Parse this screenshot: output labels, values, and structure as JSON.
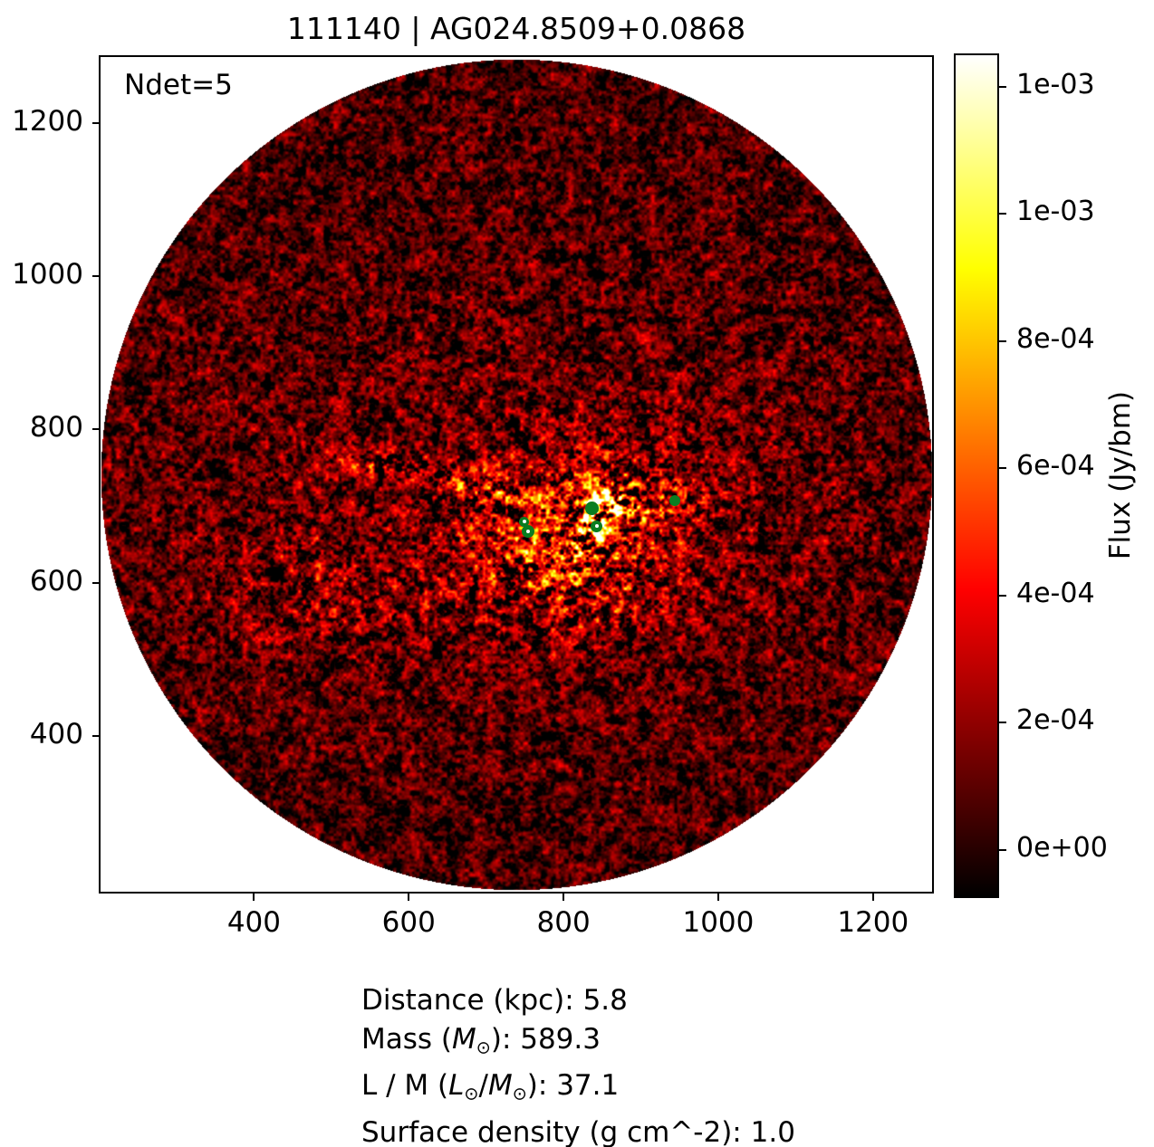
{
  "title": "111140 | AG024.8509+0.0868",
  "annotation": "Ndet=5",
  "axes": {
    "x_ticks": [
      400,
      600,
      800,
      1000,
      1200
    ],
    "y_ticks": [
      400,
      600,
      800,
      1000,
      1200
    ],
    "x_range": [
      200.5,
      1277.5
    ],
    "y_range": [
      196,
      1287
    ]
  },
  "colorbar": {
    "label": "Flux (Jy/bm)",
    "colormap": "hot",
    "vmin": -7.6e-05,
    "vmax": 0.0012525,
    "ticks": [
      {
        "label": "1e-03",
        "value": 0.0012
      },
      {
        "label": "1e-03",
        "value": 0.001
      },
      {
        "label": "8e-04",
        "value": 0.0008
      },
      {
        "label": "6e-04",
        "value": 0.0006
      },
      {
        "label": "4e-04",
        "value": 0.0004
      },
      {
        "label": "2e-04",
        "value": 0.0002
      },
      {
        "label": "0e+00",
        "value": 0.0
      }
    ]
  },
  "info": {
    "line1": "Distance (kpc): 5.8",
    "line2": {
      "pre": "Mass (",
      "m": "M",
      "sun": "⊙",
      "post": "): 589.3"
    },
    "line3": {
      "pre": "L / M (",
      "l": "L",
      "sun1": "⊙",
      "slash": "/",
      "m": "M",
      "sun2": "⊙",
      "post": "): 37.1"
    },
    "line4": "Surface density (g cm^-2): 1.0"
  },
  "chart_data": {
    "type": "heatmap",
    "title": "111140 | AG024.8509+0.0868",
    "annotation": "Ndet=5",
    "x_range": [
      200.5,
      1277.5
    ],
    "y_range": [
      196,
      1287
    ],
    "x_ticks": [
      400,
      600,
      800,
      1000,
      1200
    ],
    "y_ticks": [
      400,
      600,
      800,
      1000,
      1200
    ],
    "colorbar_label": "Flux (Jy/bm)",
    "colorbar_tick_labels": [
      "1e-03",
      "1e-03",
      "8e-04",
      "6e-04",
      "4e-04",
      "2e-04",
      "0e+00"
    ],
    "colorbar_tick_values": [
      0.0012,
      0.001,
      0.0008,
      0.0006,
      0.0004,
      0.0002,
      0.0
    ],
    "colormap": "hot",
    "field_shape": "circle",
    "field_center_xy": [
      739,
      741.5
    ],
    "field_radius": 537,
    "detections_count": 5,
    "detection_color": "#0a7d21",
    "detections": [
      {
        "x": 749,
        "y": 680,
        "r": 5.5,
        "hole": true
      },
      {
        "x": 754,
        "y": 667,
        "r": 7.0,
        "hole": true
      },
      {
        "x": 837,
        "y": 697,
        "r": 7.5,
        "hole": false
      },
      {
        "x": 843,
        "y": 674,
        "r": 6.5,
        "hole": true
      },
      {
        "x": 944,
        "y": 707,
        "r": 6.0,
        "hole": false
      }
    ],
    "bright_features": [
      {
        "x": 821,
        "y": 672,
        "a": 105,
        "b": 75,
        "pa": 15,
        "amp": 0.4
      },
      {
        "x": 800,
        "y": 628,
        "a": 70,
        "b": 45,
        "pa": -20,
        "amp": 0.18
      },
      {
        "x": 837,
        "y": 683,
        "a": 34,
        "b": 12,
        "pa": 70,
        "amp": 0.95
      },
      {
        "x": 879,
        "y": 705,
        "a": 14,
        "b": 12,
        "pa": 0,
        "amp": 0.95
      },
      {
        "x": 575,
        "y": 752,
        "a": 55,
        "b": 13,
        "pa": -12,
        "amp": 0.3
      },
      {
        "x": 700,
        "y": 722,
        "a": 45,
        "b": 16,
        "pa": -15,
        "amp": 0.26
      },
      {
        "x": 482,
        "y": 589,
        "a": 90,
        "b": 55,
        "pa": 0,
        "amp": 0.13
      },
      {
        "x": 760,
        "y": 700,
        "a": 340,
        "b": 175,
        "pa": 0,
        "amp": 0.1
      },
      {
        "x": 944,
        "y": 707,
        "a": 26,
        "b": 18,
        "pa": 0,
        "amp": 0.18
      }
    ],
    "values": {
      "distance_kpc": 5.8,
      "mass_msun": 589.3,
      "l_over_m": 37.1,
      "surface_density_g_cm2": 1.0
    }
  }
}
